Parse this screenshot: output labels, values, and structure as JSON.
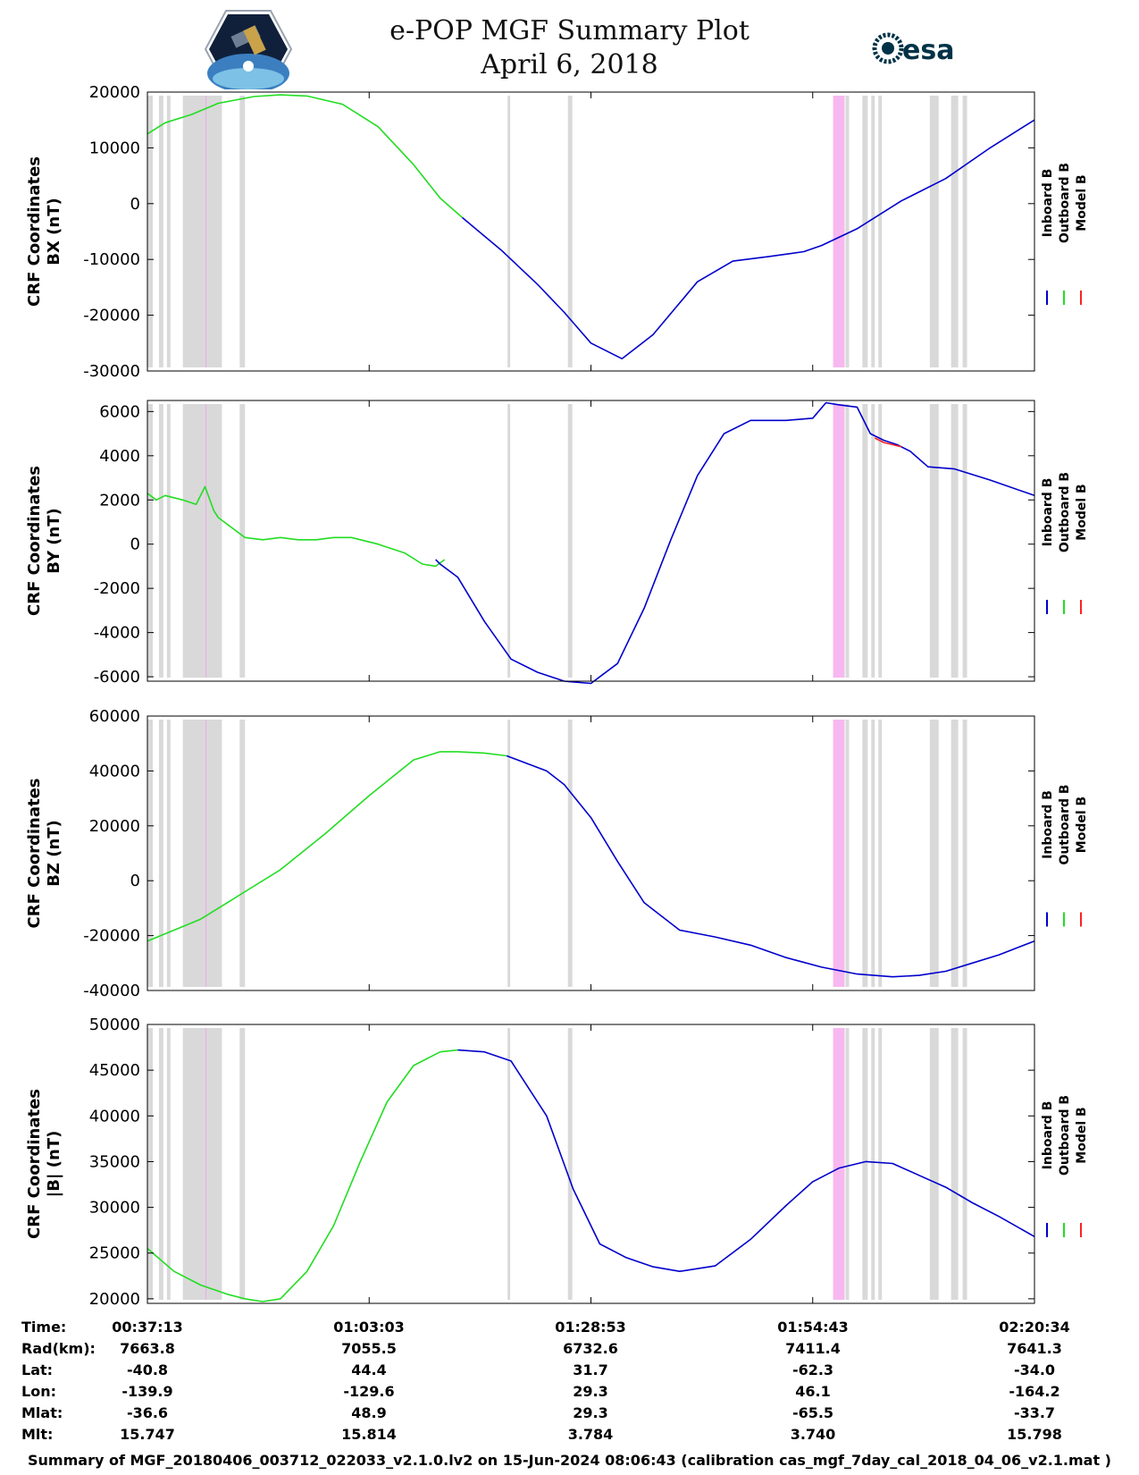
{
  "header": {
    "title_line1": "e-POP MGF Summary Plot",
    "title_line2": "April 6, 2018",
    "left_logo": "cassiope-satellite-logo",
    "right_logo_text": "esa"
  },
  "legend": [
    "Inboard B",
    "Outboard B",
    "Model B"
  ],
  "colors": {
    "inboard": "#0000cc",
    "outboard": "#22dd22",
    "model": "#ff2222",
    "gap_shade": "#d9d9d9",
    "event_shade": "#f7b8f0"
  },
  "footer_text": "Summary of MGF_20180406_003712_022033_v2.1.0.lv2 on 15-Jun-2024 08:06:43 (calibration cas_mgf_7day_cal_2018_04_06_v2.1.mat )",
  "bottom_table": {
    "row_labels": [
      "Time:",
      "Rad(km):",
      "Lat:",
      "Lon:",
      "Mlat:",
      "Mlt:"
    ],
    "columns": [
      [
        "00:37:13",
        "7663.8",
        "-40.8",
        "-139.9",
        "-36.6",
        "15.747"
      ],
      [
        "01:03:03",
        "7055.5",
        "44.4",
        "-129.6",
        "48.9",
        "15.814"
      ],
      [
        "01:28:53",
        "6732.6",
        "31.7",
        "29.3",
        "29.3",
        "3.784"
      ],
      [
        "01:54:43",
        "7411.4",
        "-62.3",
        "46.1",
        "-65.5",
        "3.740"
      ],
      [
        "02:20:34",
        "7641.3",
        "-34.0",
        "-164.2",
        "-33.7",
        "15.798"
      ]
    ]
  },
  "chart_data": [
    {
      "type": "line",
      "ylabel_line1": "CRF Coordinates",
      "ylabel_line2": "BX (nT)",
      "ylim": [
        -30000,
        20000
      ],
      "yticks": [
        -30000,
        -20000,
        -10000,
        0,
        10000,
        20000
      ],
      "xlim": [
        0,
        100
      ],
      "xtick_positions": [
        25,
        50,
        75
      ],
      "xtick_labels": [
        "01:03:03",
        "01:28:53",
        "01:54:43"
      ],
      "series": [
        {
          "name": "Outboard B",
          "x": [
            0,
            2,
            5,
            8,
            12,
            15,
            18,
            22,
            26,
            30,
            33,
            35.5
          ],
          "y": [
            12500,
            14500,
            16000,
            18000,
            19200,
            19500,
            19300,
            17800,
            13800,
            7000,
            1000,
            -2500
          ]
        },
        {
          "name": "Inboard B",
          "x": [
            35.5,
            40,
            44,
            47,
            50,
            53.5,
            57,
            62,
            66,
            70,
            74,
            76,
            80,
            85,
            90,
            95,
            100
          ],
          "y": [
            -2500,
            -8500,
            -14500,
            -19500,
            -25000,
            -27800,
            -23500,
            -14000,
            -10300,
            -9500,
            -8600,
            -7500,
            -4500,
            500,
            4500,
            10000,
            15000
          ]
        }
      ]
    },
    {
      "type": "line",
      "ylabel_line1": "CRF Coordinates",
      "ylabel_line2": "BY (nT)",
      "ylim": [
        -6200,
        6500
      ],
      "yticks": [
        -6000,
        -4000,
        -2000,
        0,
        2000,
        4000,
        6000
      ],
      "xlim": [
        0,
        100
      ],
      "xtick_positions": [
        25,
        50,
        75
      ],
      "xtick_labels": [
        "01:03:03",
        "01:28:53",
        "01:54:43"
      ],
      "series": [
        {
          "name": "Outboard B",
          "x": [
            0,
            1,
            2,
            4,
            5.5,
            6.5,
            7.5,
            8,
            9,
            10,
            11,
            13,
            15,
            17,
            19,
            21,
            23,
            26,
            29,
            31,
            32.5,
            33.5
          ],
          "y": [
            2300,
            2000,
            2200,
            2000,
            1800,
            2600,
            1500,
            1200,
            900,
            600,
            300,
            200,
            300,
            200,
            200,
            300,
            300,
            0,
            -400,
            -900,
            -1000,
            -700
          ]
        },
        {
          "name": "Inboard B",
          "x": [
            32.5,
            33,
            35,
            38,
            41,
            44,
            47,
            50,
            53,
            56,
            59,
            62,
            65,
            68,
            72,
            75,
            76.5,
            78,
            80,
            81.5,
            83,
            84.5,
            86,
            88,
            91,
            95,
            100
          ],
          "y": [
            -700,
            -900,
            -1500,
            -3500,
            -5200,
            -5800,
            -6200,
            -6300,
            -5400,
            -2900,
            200,
            3100,
            5000,
            5600,
            5600,
            5700,
            6400,
            6300,
            6200,
            5000,
            4700,
            4500,
            4200,
            3500,
            3400,
            2900,
            2200
          ]
        },
        {
          "name": "Model B",
          "x": [
            82,
            83,
            84,
            85
          ],
          "y": [
            4800,
            4600,
            4500,
            4400
          ]
        }
      ]
    },
    {
      "type": "line",
      "ylabel_line1": "CRF Coordinates",
      "ylabel_line2": "BZ (nT)",
      "ylim": [
        -40000,
        60000
      ],
      "yticks": [
        -40000,
        -20000,
        0,
        20000,
        40000,
        60000
      ],
      "xlim": [
        0,
        100
      ],
      "xtick_positions": [
        25,
        50,
        75
      ],
      "xtick_labels": [
        "01:03:03",
        "01:28:53",
        "01:54:43"
      ],
      "series": [
        {
          "name": "Outboard B",
          "x": [
            0,
            3,
            6,
            9,
            11,
            15,
            20,
            25,
            30,
            33,
            35,
            38,
            40.5
          ],
          "y": [
            -22000,
            -18000,
            -14000,
            -8000,
            -4000,
            4000,
            17000,
            31000,
            44000,
            47000,
            47000,
            46500,
            45500
          ]
        },
        {
          "name": "Inboard B",
          "x": [
            40.5,
            45,
            47,
            50,
            53,
            56,
            60,
            64,
            68,
            72,
            76,
            80,
            84,
            87,
            90,
            93,
            96,
            100
          ],
          "y": [
            45500,
            40000,
            35000,
            23000,
            7000,
            -8000,
            -18000,
            -20500,
            -23500,
            -28000,
            -31500,
            -34000,
            -35000,
            -34500,
            -33000,
            -30000,
            -27000,
            -22000
          ]
        }
      ]
    },
    {
      "type": "line",
      "ylabel_line1": "CRF Coordinates",
      "ylabel_line2": "|B| (nT)",
      "ylim": [
        19500,
        50000
      ],
      "yticks": [
        20000,
        25000,
        30000,
        35000,
        40000,
        45000,
        50000
      ],
      "xlim": [
        0,
        100
      ],
      "xtick_positions": [
        25,
        50,
        75
      ],
      "xtick_labels": [
        "01:03:03",
        "01:28:53",
        "01:54:43"
      ],
      "series": [
        {
          "name": "Outboard B",
          "x": [
            0,
            3,
            6,
            9,
            11,
            13,
            15,
            18,
            21,
            24,
            27,
            30,
            33,
            35
          ],
          "y": [
            25500,
            23000,
            21500,
            20500,
            20000,
            19700,
            20000,
            23000,
            28000,
            35000,
            41500,
            45500,
            47000,
            47200
          ]
        },
        {
          "name": "Inboard B",
          "x": [
            35,
            38,
            41,
            45,
            48,
            51,
            54,
            57,
            60,
            64,
            68,
            72,
            75,
            78,
            81,
            84,
            87,
            90,
            93,
            96,
            100
          ],
          "y": [
            47200,
            47000,
            46000,
            40000,
            32000,
            26000,
            24500,
            23500,
            23000,
            23600,
            26500,
            30200,
            32800,
            34300,
            35000,
            34800,
            33500,
            32200,
            30500,
            29000,
            26800
          ]
        }
      ]
    }
  ]
}
